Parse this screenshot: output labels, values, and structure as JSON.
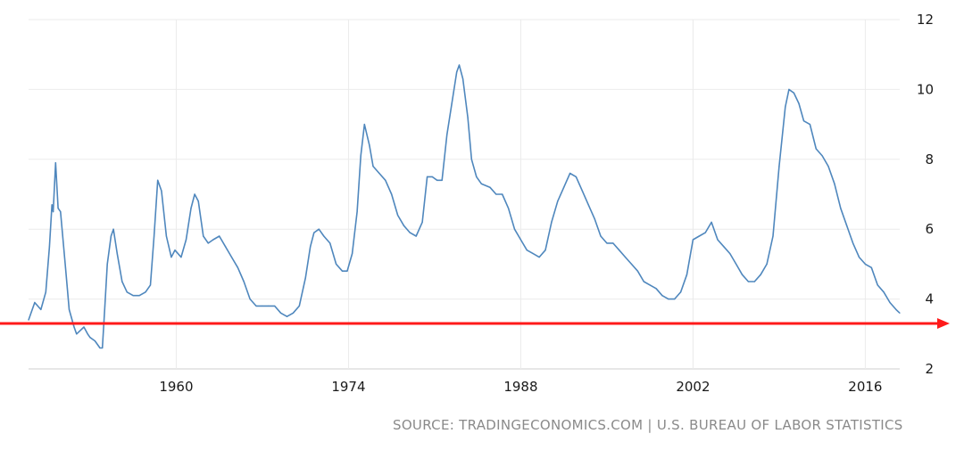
{
  "chart_data": {
    "type": "line",
    "title": "",
    "xlabel": "",
    "ylabel": "",
    "xlim": [
      1948,
      2018.8
    ],
    "ylim": [
      2,
      12
    ],
    "x_ticks": [
      1960,
      1974,
      1988,
      2002,
      2016
    ],
    "x_tick_labels": [
      "1960",
      "1974",
      "1988",
      "2002",
      "2016"
    ],
    "y_ticks": [
      2,
      4,
      6,
      8,
      10,
      12
    ],
    "y_tick_labels": [
      "2",
      "4",
      "6",
      "8",
      "10",
      "12"
    ],
    "y_axis_side": "right",
    "grid": true,
    "series": [
      {
        "color": "#4f87bd",
        "points": [
          [
            1948.0,
            3.4
          ],
          [
            1948.5,
            3.9
          ],
          [
            1949.0,
            3.7
          ],
          [
            1949.4,
            4.2
          ],
          [
            1949.7,
            5.5
          ],
          [
            1949.9,
            6.7
          ],
          [
            1950.0,
            6.5
          ],
          [
            1950.2,
            7.9
          ],
          [
            1950.4,
            6.6
          ],
          [
            1950.6,
            6.5
          ],
          [
            1951.0,
            4.9
          ],
          [
            1951.3,
            3.7
          ],
          [
            1951.7,
            3.2
          ],
          [
            1951.9,
            3.0
          ],
          [
            1952.2,
            3.1
          ],
          [
            1952.5,
            3.2
          ],
          [
            1952.8,
            3.0
          ],
          [
            1953.0,
            2.9
          ],
          [
            1953.4,
            2.8
          ],
          [
            1953.8,
            2.6
          ],
          [
            1954.0,
            2.6
          ],
          [
            1954.2,
            3.8
          ],
          [
            1954.4,
            5.0
          ],
          [
            1954.7,
            5.8
          ],
          [
            1954.9,
            6.0
          ],
          [
            1955.2,
            5.3
          ],
          [
            1955.6,
            4.5
          ],
          [
            1956.0,
            4.2
          ],
          [
            1956.5,
            4.1
          ],
          [
            1957.0,
            4.1
          ],
          [
            1957.5,
            4.2
          ],
          [
            1957.9,
            4.4
          ],
          [
            1958.2,
            5.8
          ],
          [
            1958.5,
            7.4
          ],
          [
            1958.8,
            7.1
          ],
          [
            1959.2,
            5.8
          ],
          [
            1959.6,
            5.2
          ],
          [
            1959.9,
            5.4
          ],
          [
            1960.4,
            5.2
          ],
          [
            1960.8,
            5.7
          ],
          [
            1961.2,
            6.6
          ],
          [
            1961.5,
            7.0
          ],
          [
            1961.8,
            6.8
          ],
          [
            1962.2,
            5.8
          ],
          [
            1962.6,
            5.6
          ],
          [
            1963.0,
            5.7
          ],
          [
            1963.5,
            5.8
          ],
          [
            1964.0,
            5.5
          ],
          [
            1964.5,
            5.2
          ],
          [
            1965.0,
            4.9
          ],
          [
            1965.5,
            4.5
          ],
          [
            1966.0,
            4.0
          ],
          [
            1966.5,
            3.8
          ],
          [
            1967.0,
            3.8
          ],
          [
            1967.5,
            3.8
          ],
          [
            1968.0,
            3.8
          ],
          [
            1968.5,
            3.6
          ],
          [
            1969.0,
            3.5
          ],
          [
            1969.5,
            3.6
          ],
          [
            1970.0,
            3.8
          ],
          [
            1970.5,
            4.6
          ],
          [
            1970.9,
            5.5
          ],
          [
            1971.2,
            5.9
          ],
          [
            1971.6,
            6.0
          ],
          [
            1972.0,
            5.8
          ],
          [
            1972.5,
            5.6
          ],
          [
            1973.0,
            5.0
          ],
          [
            1973.5,
            4.8
          ],
          [
            1973.9,
            4.8
          ],
          [
            1974.3,
            5.3
          ],
          [
            1974.7,
            6.5
          ],
          [
            1975.0,
            8.1
          ],
          [
            1975.3,
            9.0
          ],
          [
            1975.7,
            8.4
          ],
          [
            1976.0,
            7.8
          ],
          [
            1976.5,
            7.6
          ],
          [
            1977.0,
            7.4
          ],
          [
            1977.5,
            7.0
          ],
          [
            1978.0,
            6.4
          ],
          [
            1978.5,
            6.1
          ],
          [
            1979.0,
            5.9
          ],
          [
            1979.5,
            5.8
          ],
          [
            1980.0,
            6.2
          ],
          [
            1980.4,
            7.5
          ],
          [
            1980.8,
            7.5
          ],
          [
            1981.2,
            7.4
          ],
          [
            1981.6,
            7.4
          ],
          [
            1982.0,
            8.7
          ],
          [
            1982.4,
            9.6
          ],
          [
            1982.8,
            10.5
          ],
          [
            1983.0,
            10.7
          ],
          [
            1983.3,
            10.3
          ],
          [
            1983.7,
            9.2
          ],
          [
            1984.0,
            8.0
          ],
          [
            1984.4,
            7.5
          ],
          [
            1984.8,
            7.3
          ],
          [
            1985.5,
            7.2
          ],
          [
            1986.0,
            7.0
          ],
          [
            1986.5,
            7.0
          ],
          [
            1987.0,
            6.6
          ],
          [
            1987.5,
            6.0
          ],
          [
            1988.0,
            5.7
          ],
          [
            1988.5,
            5.4
          ],
          [
            1989.0,
            5.3
          ],
          [
            1989.5,
            5.2
          ],
          [
            1990.0,
            5.4
          ],
          [
            1990.5,
            6.2
          ],
          [
            1991.0,
            6.8
          ],
          [
            1991.5,
            7.2
          ],
          [
            1992.0,
            7.6
          ],
          [
            1992.5,
            7.5
          ],
          [
            1993.0,
            7.1
          ],
          [
            1993.5,
            6.7
          ],
          [
            1994.0,
            6.3
          ],
          [
            1994.5,
            5.8
          ],
          [
            1995.0,
            5.6
          ],
          [
            1995.5,
            5.6
          ],
          [
            1996.0,
            5.4
          ],
          [
            1996.5,
            5.2
          ],
          [
            1997.0,
            5.0
          ],
          [
            1997.5,
            4.8
          ],
          [
            1998.0,
            4.5
          ],
          [
            1998.5,
            4.4
          ],
          [
            1999.0,
            4.3
          ],
          [
            1999.5,
            4.1
          ],
          [
            2000.0,
            4.0
          ],
          [
            2000.5,
            4.0
          ],
          [
            2001.0,
            4.2
          ],
          [
            2001.5,
            4.7
          ],
          [
            2002.0,
            5.7
          ],
          [
            2002.5,
            5.8
          ],
          [
            2003.0,
            5.9
          ],
          [
            2003.5,
            6.2
          ],
          [
            2004.0,
            5.7
          ],
          [
            2004.5,
            5.5
          ],
          [
            2005.0,
            5.3
          ],
          [
            2005.5,
            5.0
          ],
          [
            2006.0,
            4.7
          ],
          [
            2006.5,
            4.5
          ],
          [
            2007.0,
            4.5
          ],
          [
            2007.5,
            4.7
          ],
          [
            2008.0,
            5.0
          ],
          [
            2008.5,
            5.8
          ],
          [
            2009.0,
            7.8
          ],
          [
            2009.5,
            9.5
          ],
          [
            2009.8,
            10.0
          ],
          [
            2010.2,
            9.9
          ],
          [
            2010.6,
            9.6
          ],
          [
            2011.0,
            9.1
          ],
          [
            2011.5,
            9.0
          ],
          [
            2012.0,
            8.3
          ],
          [
            2012.5,
            8.1
          ],
          [
            2013.0,
            7.8
          ],
          [
            2013.5,
            7.3
          ],
          [
            2014.0,
            6.6
          ],
          [
            2014.5,
            6.1
          ],
          [
            2015.0,
            5.6
          ],
          [
            2015.5,
            5.2
          ],
          [
            2016.0,
            5.0
          ],
          [
            2016.5,
            4.9
          ],
          [
            2017.0,
            4.4
          ],
          [
            2017.5,
            4.2
          ],
          [
            2018.0,
            3.9
          ],
          [
            2018.5,
            3.7
          ],
          [
            2018.8,
            3.6
          ]
        ]
      }
    ],
    "annotations": [
      {
        "type": "arrow",
        "color": "#ff1a1a",
        "x_start": 1948,
        "y_start": 3.3,
        "x_end": 2018.8,
        "y_end": 3.3,
        "extends_past_plot": true
      }
    ]
  },
  "source_text": "SOURCE: TRADINGECONOMICS.COM | U.S. BUREAU OF LABOR STATISTICS"
}
